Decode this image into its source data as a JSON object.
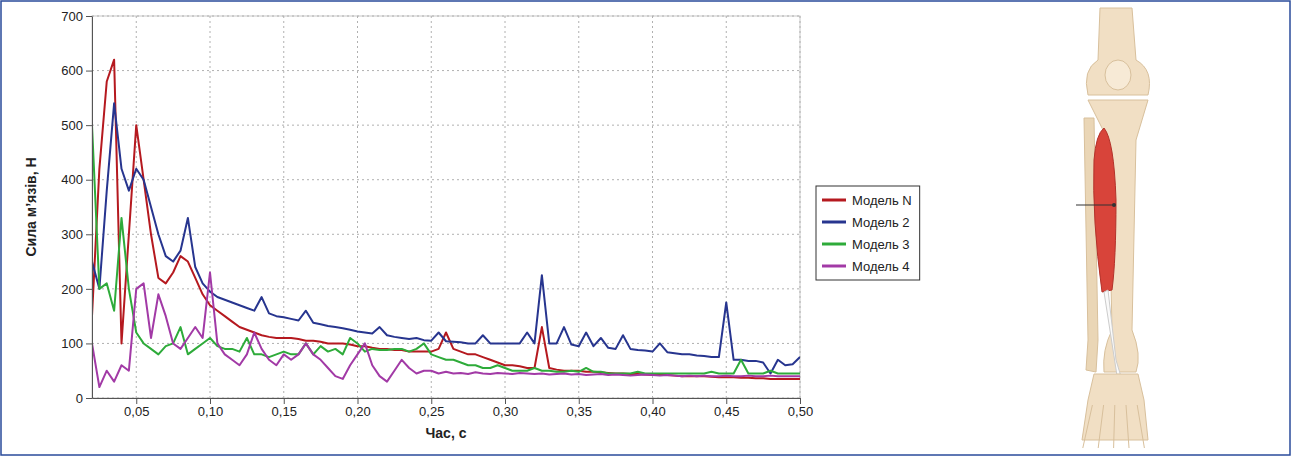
{
  "chart_data": {
    "type": "line",
    "x_label": "Час, с",
    "y_label": "Сила м’язів, Н",
    "xlim": [
      0.02,
      0.5
    ],
    "xticks": [
      {
        "value": 0.05,
        "label": "0,05"
      },
      {
        "value": 0.1,
        "label": "0,10"
      },
      {
        "value": 0.15,
        "label": "0,15"
      },
      {
        "value": 0.2,
        "label": "0,20"
      },
      {
        "value": 0.25,
        "label": "0,25"
      },
      {
        "value": 0.3,
        "label": "0,30"
      },
      {
        "value": 0.35,
        "label": "0,35"
      },
      {
        "value": 0.4,
        "label": "0,40"
      },
      {
        "value": 0.45,
        "label": "0,45"
      },
      {
        "value": 0.5,
        "label": "0,50"
      }
    ],
    "ylim": [
      0,
      700
    ],
    "yticks": [
      0,
      100,
      200,
      300,
      400,
      500,
      600,
      700
    ],
    "grid": true,
    "legend": "right",
    "x": [
      0.02,
      0.025,
      0.03,
      0.035,
      0.04,
      0.045,
      0.05,
      0.055,
      0.06,
      0.065,
      0.07,
      0.075,
      0.08,
      0.085,
      0.09,
      0.095,
      0.1,
      0.105,
      0.11,
      0.115,
      0.12,
      0.125,
      0.13,
      0.135,
      0.14,
      0.145,
      0.15,
      0.155,
      0.16,
      0.165,
      0.17,
      0.175,
      0.18,
      0.185,
      0.19,
      0.195,
      0.2,
      0.205,
      0.21,
      0.215,
      0.22,
      0.225,
      0.23,
      0.235,
      0.24,
      0.245,
      0.25,
      0.255,
      0.26,
      0.265,
      0.27,
      0.275,
      0.28,
      0.285,
      0.29,
      0.295,
      0.3,
      0.305,
      0.31,
      0.315,
      0.32,
      0.325,
      0.33,
      0.335,
      0.34,
      0.345,
      0.35,
      0.355,
      0.36,
      0.365,
      0.37,
      0.375,
      0.38,
      0.385,
      0.39,
      0.395,
      0.4,
      0.405,
      0.41,
      0.415,
      0.42,
      0.425,
      0.43,
      0.435,
      0.44,
      0.445,
      0.45,
      0.455,
      0.46,
      0.465,
      0.47,
      0.475,
      0.48,
      0.485,
      0.49,
      0.495,
      0.5
    ],
    "series": [
      {
        "name": "Модель N",
        "color": "#b5191f",
        "values": [
          150,
          420,
          580,
          620,
          100,
          300,
          500,
          400,
          300,
          220,
          210,
          230,
          260,
          250,
          220,
          190,
          170,
          160,
          150,
          140,
          130,
          125,
          120,
          115,
          112,
          110,
          110,
          110,
          108,
          105,
          105,
          103,
          100,
          100,
          100,
          98,
          95,
          95,
          92,
          90,
          90,
          88,
          88,
          85,
          85,
          85,
          85,
          90,
          120,
          90,
          85,
          80,
          80,
          75,
          70,
          65,
          60,
          60,
          58,
          55,
          55,
          130,
          55,
          52,
          50,
          50,
          50,
          48,
          48,
          47,
          46,
          45,
          45,
          44,
          44,
          43,
          42,
          42,
          42,
          41,
          40,
          40,
          40,
          40,
          39,
          38,
          38,
          38,
          37,
          37,
          36,
          36,
          35,
          35,
          35,
          35,
          35
        ]
      },
      {
        "name": "Модель 2",
        "color": "#27358f",
        "values": [
          250,
          200,
          380,
          540,
          420,
          380,
          420,
          400,
          350,
          300,
          260,
          250,
          270,
          330,
          240,
          210,
          195,
          185,
          180,
          175,
          170,
          165,
          160,
          185,
          155,
          150,
          148,
          145,
          142,
          160,
          138,
          135,
          132,
          130,
          128,
          125,
          122,
          120,
          118,
          130,
          115,
          112,
          110,
          108,
          110,
          106,
          105,
          120,
          104,
          103,
          102,
          100,
          100,
          115,
          100,
          100,
          100,
          100,
          100,
          120,
          100,
          225,
          100,
          100,
          130,
          98,
          95,
          120,
          95,
          110,
          92,
          90,
          115,
          90,
          88,
          87,
          85,
          100,
          84,
          82,
          80,
          80,
          78,
          77,
          75,
          75,
          175,
          70,
          70,
          68,
          68,
          65,
          45,
          70,
          60,
          62,
          75
        ]
      },
      {
        "name": "Модель 3",
        "color": "#2eab3a",
        "values": [
          500,
          200,
          210,
          160,
          330,
          200,
          120,
          100,
          90,
          80,
          95,
          100,
          130,
          80,
          90,
          100,
          110,
          95,
          90,
          90,
          85,
          110,
          80,
          80,
          75,
          80,
          85,
          80,
          80,
          100,
          80,
          95,
          85,
          90,
          80,
          110,
          100,
          85,
          90,
          88,
          88,
          90,
          90,
          85,
          90,
          100,
          80,
          75,
          70,
          70,
          65,
          60,
          60,
          55,
          55,
          60,
          55,
          50,
          50,
          50,
          55,
          50,
          50,
          48,
          48,
          50,
          48,
          55,
          48,
          48,
          45,
          45,
          45,
          45,
          48,
          45,
          45,
          45,
          45,
          45,
          45,
          45,
          45,
          45,
          48,
          45,
          45,
          45,
          70,
          45,
          45,
          45,
          50,
          45,
          45,
          45,
          45
        ]
      },
      {
        "name": "Модель 4",
        "color": "#a23aa6",
        "values": [
          100,
          20,
          50,
          30,
          60,
          50,
          200,
          210,
          110,
          190,
          150,
          100,
          90,
          110,
          130,
          110,
          230,
          100,
          80,
          70,
          60,
          80,
          120,
          90,
          70,
          60,
          80,
          70,
          80,
          100,
          80,
          70,
          55,
          40,
          35,
          60,
          80,
          100,
          60,
          40,
          30,
          50,
          70,
          55,
          45,
          50,
          50,
          45,
          48,
          45,
          46,
          44,
          47,
          45,
          44,
          46,
          45,
          44,
          46,
          45,
          44,
          45,
          43,
          44,
          45,
          43,
          44,
          42,
          43,
          44,
          42,
          43,
          42,
          41,
          42,
          43,
          42,
          41,
          42,
          41,
          40,
          41,
          40,
          41,
          40,
          40,
          41,
          40,
          40,
          41,
          40,
          40,
          41,
          40,
          40,
          40,
          40
        ]
      }
    ]
  }
}
